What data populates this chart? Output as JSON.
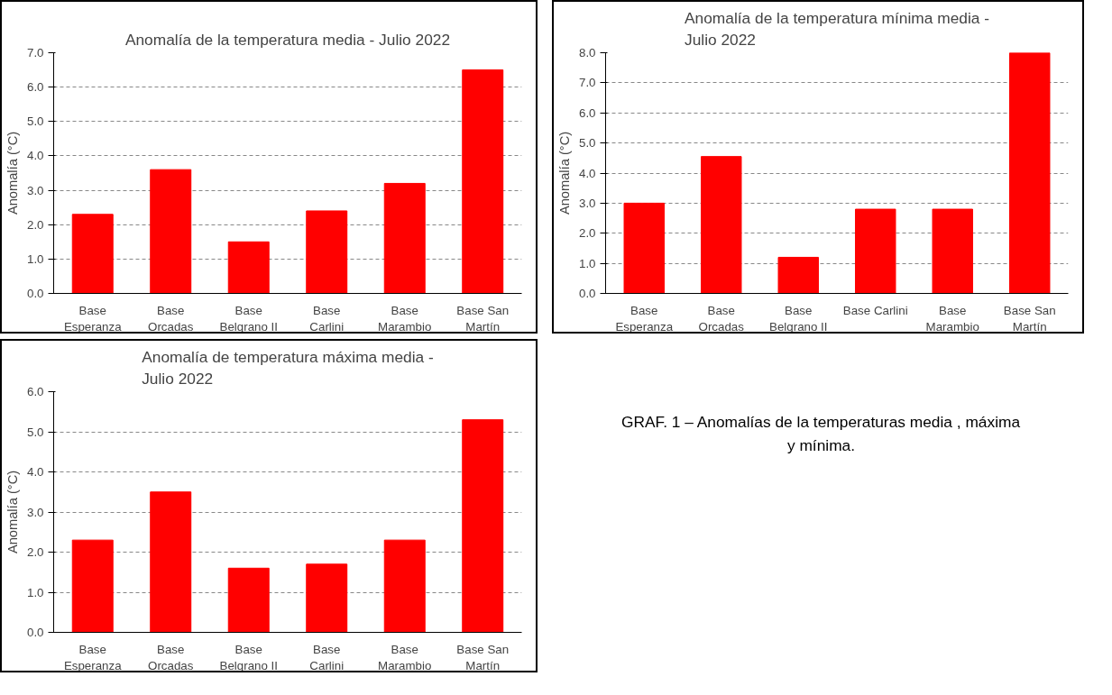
{
  "chart_data": [
    {
      "type": "bar",
      "title": "Anomalía de la temperatura media - Julio 2022",
      "ylabel": "Anomalía (°C)",
      "categories": [
        "Base\nEsperanza",
        "Base\nOrcadas",
        "Base\nBelgrano II",
        "Base\nCarlini",
        "Base\nMarambio",
        "Base San\nMartín"
      ],
      "values": [
        2.3,
        3.6,
        1.5,
        2.4,
        3.2,
        6.5
      ],
      "color": "#ff0000",
      "ylim": [
        0,
        7
      ],
      "yticks": [
        {
          "value": 0,
          "label": "0.0"
        },
        {
          "value": 1,
          "label": "1.0"
        },
        {
          "value": 2,
          "label": "2.0"
        },
        {
          "value": 3,
          "label": "3.0"
        },
        {
          "value": 4,
          "label": "4.0"
        },
        {
          "value": 5,
          "label": "5.0"
        },
        {
          "value": 6,
          "label": "6.0"
        },
        {
          "value": 7,
          "label": "7.0"
        }
      ],
      "grid": "y"
    },
    {
      "type": "bar",
      "title": "Anomalía de la temperatura mínima media -\nJulio 2022",
      "ylabel": "Anomalía (°C)",
      "categories": [
        "Base\nEsperanza",
        "Base\nOrcadas",
        "Base\nBelgrano II",
        "Base Carlini",
        "Base\nMarambio",
        "Base San\nMartín"
      ],
      "values": [
        3.0,
        4.55,
        1.2,
        2.8,
        2.8,
        8.0
      ],
      "color": "#ff0000",
      "ylim": [
        0,
        8
      ],
      "yticks": [
        {
          "value": 0,
          "label": "0.0"
        },
        {
          "value": 1,
          "label": "1.0"
        },
        {
          "value": 2,
          "label": "2.0"
        },
        {
          "value": 3,
          "label": "3.0"
        },
        {
          "value": 4,
          "label": "4.0"
        },
        {
          "value": 5,
          "label": "5.0"
        },
        {
          "value": 6,
          "label": "6.0"
        },
        {
          "value": 7,
          "label": "7.0"
        },
        {
          "value": 8,
          "label": "8.0"
        }
      ],
      "grid": "y"
    },
    {
      "type": "bar",
      "title": "Anomalía de temperatura máxima media -\nJulio 2022",
      "ylabel": "Anomalía (°C)",
      "categories": [
        "Base\nEsperanza",
        "Base\nOrcadas",
        "Base\nBelgrano II",
        "Base\nCarlini",
        "Base\nMarambio",
        "Base San\nMartín"
      ],
      "values": [
        2.3,
        3.5,
        1.6,
        1.7,
        2.3,
        5.3
      ],
      "color": "#ff0000",
      "ylim": [
        0,
        6
      ],
      "yticks": [
        {
          "value": 0,
          "label": "0.0"
        },
        {
          "value": 1,
          "label": "1.0"
        },
        {
          "value": 2,
          "label": "2.0"
        },
        {
          "value": 3,
          "label": "3.0"
        },
        {
          "value": 4,
          "label": "4.0"
        },
        {
          "value": 5,
          "label": "5.0"
        },
        {
          "value": 6,
          "label": "6.0"
        }
      ],
      "grid": "y"
    },
    {
      "type": "other",
      "annotations": [
        "GRAF. 1 – Anomalías de la temperaturas media , máxima\ny mínima."
      ]
    }
  ]
}
